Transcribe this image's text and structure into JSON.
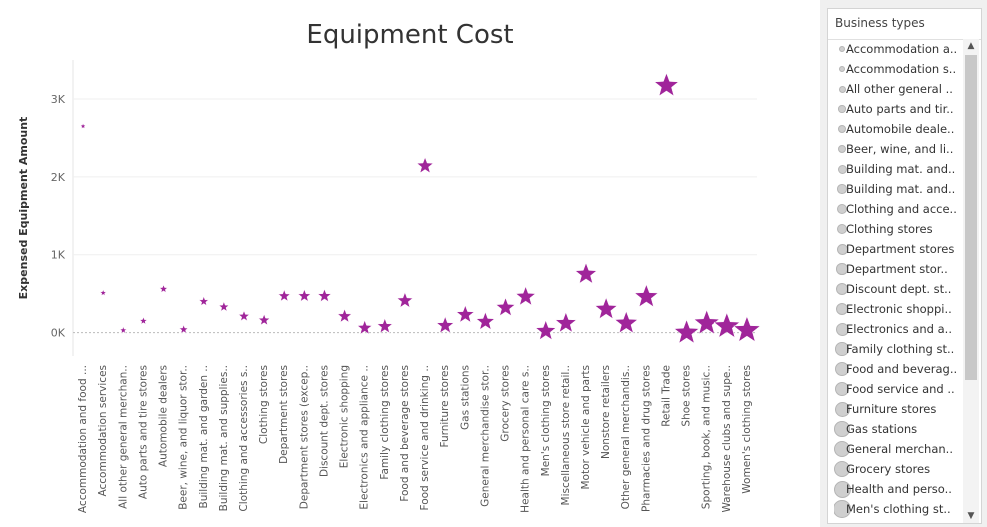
{
  "chart_data": {
    "type": "scatter",
    "title": "Equipment Cost",
    "ylabel": "Expensed Equipment Amount",
    "xlabel": "",
    "ylim": [
      -300,
      3500
    ],
    "yticks": [
      {
        "v": 0,
        "label": "0K"
      },
      {
        "v": 1000,
        "label": "1K"
      },
      {
        "v": 2000,
        "label": "2K"
      },
      {
        "v": 3000,
        "label": "3K"
      }
    ],
    "marker": "star",
    "color": "#a0259a",
    "grid": true,
    "categories": [
      "Accommodation and food ...",
      "Accommodation services",
      "All other general merchan..",
      "Auto parts and tire stores",
      "Automobile dealers",
      "Beer, wine, and liquor stor..",
      "Building mat. and garden ..",
      "Building mat. and supplies..",
      "Clothing and accessories s..",
      "Clothing stores",
      "Department stores",
      "Department stores (excep..",
      "Discount dept. stores",
      "Electronic shopping",
      "Electronics and appliance ..",
      "Family clothing stores",
      "Food and beverage stores",
      "Food service and drinking ..",
      "Furniture stores",
      "Gas stations",
      "General merchandise stor..",
      "Grocery stores",
      "Health and personal care s..",
      "Men's clothing stores",
      "Miscellaneous store retail..",
      "Motor vehicle and parts",
      "Nonstore retailers",
      "Other general merchandis..",
      "Pharmacies and drug stores",
      "Retail Trade",
      "Shoe stores",
      "Sporting, book, and music..",
      "Warehouse clubs and supe..",
      "Women's clothing stores"
    ],
    "values": [
      2650,
      510,
      30,
      150,
      560,
      40,
      400,
      330,
      210,
      160,
      470,
      470,
      470,
      210,
      60,
      80,
      410,
      2140,
      90,
      230,
      140,
      320,
      460,
      20,
      120,
      750,
      300,
      120,
      460,
      3170,
      0,
      120,
      80,
      30
    ]
  },
  "legend": {
    "title": "Business types",
    "items": [
      "Accommodation a..",
      "Accommodation s..",
      "All other general ..",
      "Auto parts and tir..",
      "Automobile deale..",
      "Beer, wine, and li..",
      "Building mat. and..",
      "Building mat. and..",
      "Clothing and acce..",
      "Clothing stores",
      "Department stores",
      "Department stor..",
      "Discount dept. st..",
      "Electronic shoppi..",
      "Electronics and a..",
      "Family clothing st..",
      "Food and beverag..",
      "Food service and ..",
      "Furniture stores",
      "Gas stations",
      "General merchan..",
      "Grocery stores",
      "Health and perso..",
      "Men's clothing st.."
    ]
  }
}
